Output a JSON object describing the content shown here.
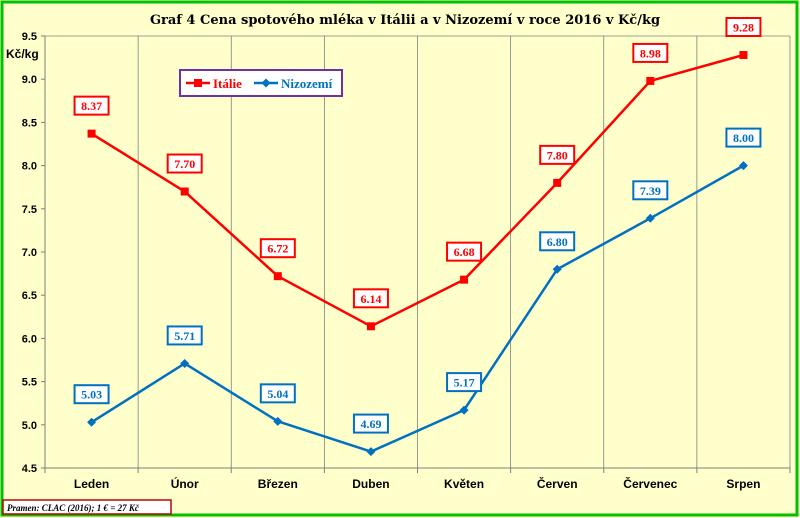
{
  "chart_data": {
    "type": "line",
    "title": "Graf 4 Cena spotového mléka v Itálii a v Nizozemí v roce 2016 v Kč/kg",
    "ylabel": "Kč/kg",
    "xlabel": "",
    "categories": [
      "Leden",
      "Únor",
      "Březen",
      "Duben",
      "Květen",
      "Červen",
      "Červenec",
      "Srpen"
    ],
    "yticks": [
      "4.5",
      "5.0",
      "5.5",
      "6.0",
      "6.5",
      "7.0",
      "7.5",
      "8.0",
      "8.5",
      "9.0",
      "9.5"
    ],
    "ylim": [
      4.5,
      9.5
    ],
    "grid": "vertical",
    "legend_position": "top-left",
    "series": [
      {
        "name": "Itálie",
        "color": "#ff0000",
        "marker": "square",
        "values": [
          8.37,
          7.7,
          6.72,
          6.14,
          6.68,
          7.8,
          8.98,
          9.28
        ],
        "labels": [
          "8.37",
          "7.70",
          "6.72",
          "6.14",
          "6.68",
          "7.80",
          "8.98",
          "9.28"
        ]
      },
      {
        "name": "Nizozemí",
        "color": "#0070c0",
        "marker": "diamond",
        "values": [
          5.03,
          5.71,
          5.04,
          4.69,
          5.17,
          6.8,
          7.39,
          8.0
        ],
        "labels": [
          "5.03",
          "5.71",
          "5.04",
          "4.69",
          "5.17",
          "6.80",
          "7.39",
          "8.00"
        ]
      }
    ]
  },
  "source": "Pramen: CLAC (2016); 1 € = 27 Kč",
  "colors": {
    "background": "#ffffcc",
    "frame": "#00c000",
    "legend_border": "#7030a0",
    "source_border": "#c00000"
  }
}
